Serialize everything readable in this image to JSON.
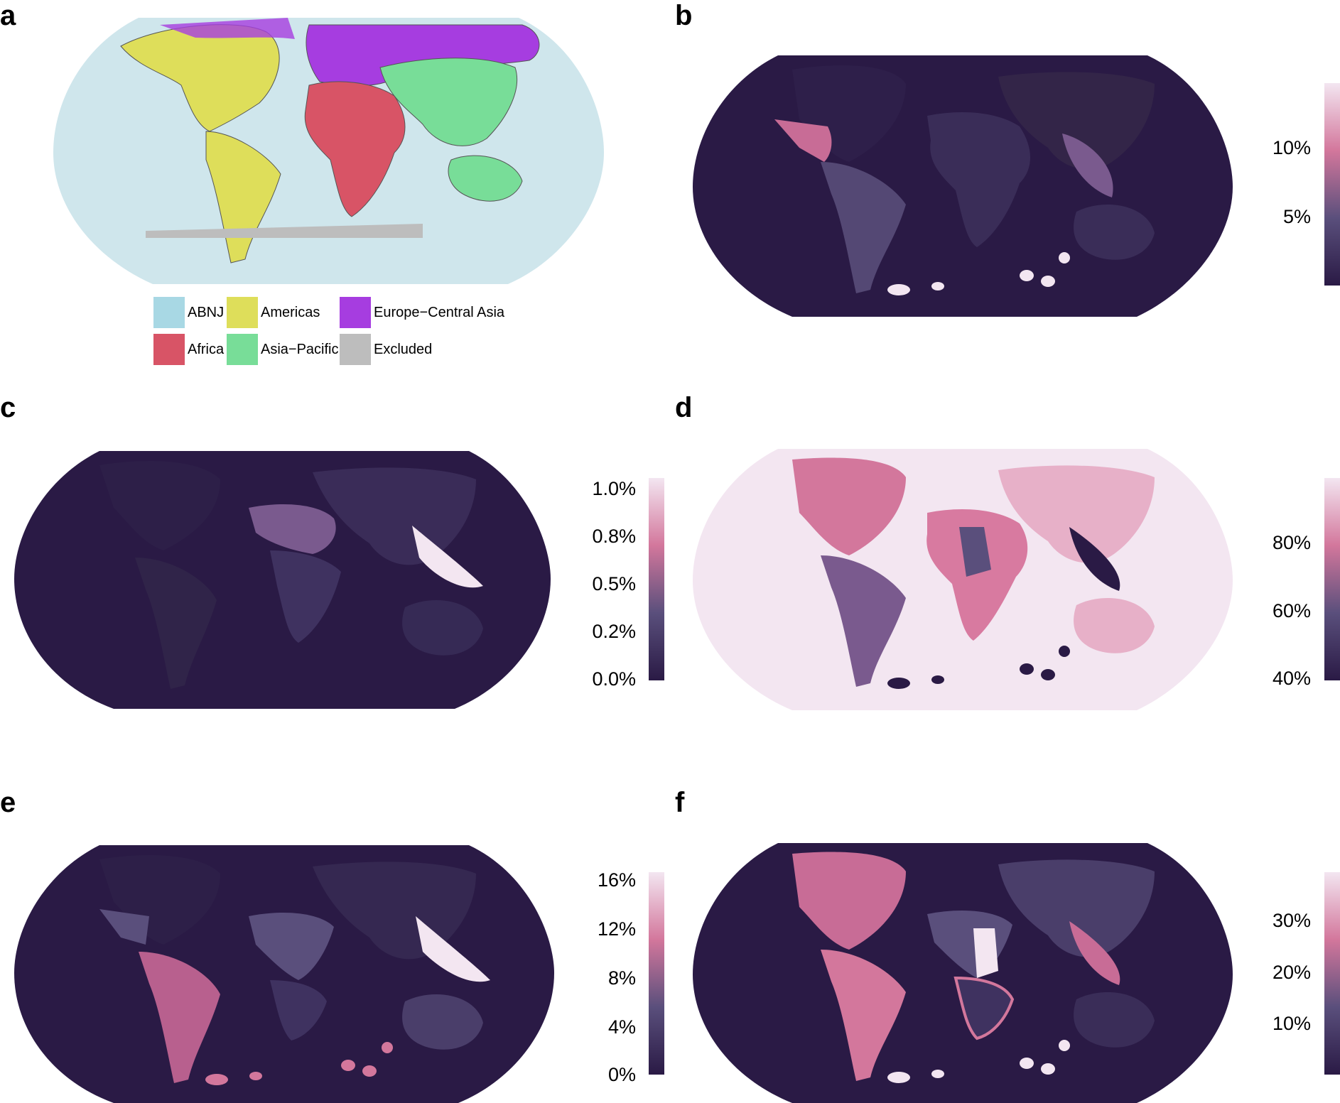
{
  "panels": {
    "a": {
      "letter": "a",
      "legend": [
        {
          "label": "ABNJ",
          "color": "#a8d8e4"
        },
        {
          "label": "Americas",
          "color": "#dede5a"
        },
        {
          "label": "Europe−Central Asia",
          "color": "#a63de0"
        },
        {
          "label": "Africa",
          "color": "#d85466"
        },
        {
          "label": "Asia−Pacific",
          "color": "#78dd98"
        },
        {
          "label": "Excluded",
          "color": "#bdbdbd"
        }
      ]
    },
    "b": {
      "letter": "b",
      "ticks": [
        "10%",
        "5%"
      ]
    },
    "c": {
      "letter": "c",
      "ticks": [
        "1.0%",
        "0.8%",
        "0.5%",
        "0.2%",
        "0.0%"
      ]
    },
    "d": {
      "letter": "d",
      "ticks": [
        "80%",
        "60%",
        "40%"
      ]
    },
    "e": {
      "letter": "e",
      "ticks": [
        "16%",
        "12%",
        "8%",
        "4%",
        "0%"
      ]
    },
    "f": {
      "letter": "f",
      "ticks": [
        "30%",
        "20%",
        "10%"
      ]
    }
  },
  "colors": {
    "dark": "#2a1a45",
    "mid": "#5a4f7c",
    "pink": "#d3779c",
    "light": "#f3e6f1",
    "ocean_a": "#cfe6ec"
  }
}
